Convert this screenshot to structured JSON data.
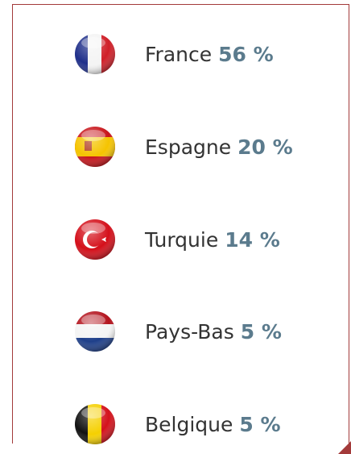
{
  "items": [
    {
      "country": "France",
      "share": "56 %"
    },
    {
      "country": "Espagne",
      "share": "20 %"
    },
    {
      "country": "Turquie",
      "share": "14 %"
    },
    {
      "country": "Pays-Bas",
      "share": "5 %"
    },
    {
      "country": "Belgique",
      "share": "5 %"
    }
  ]
}
